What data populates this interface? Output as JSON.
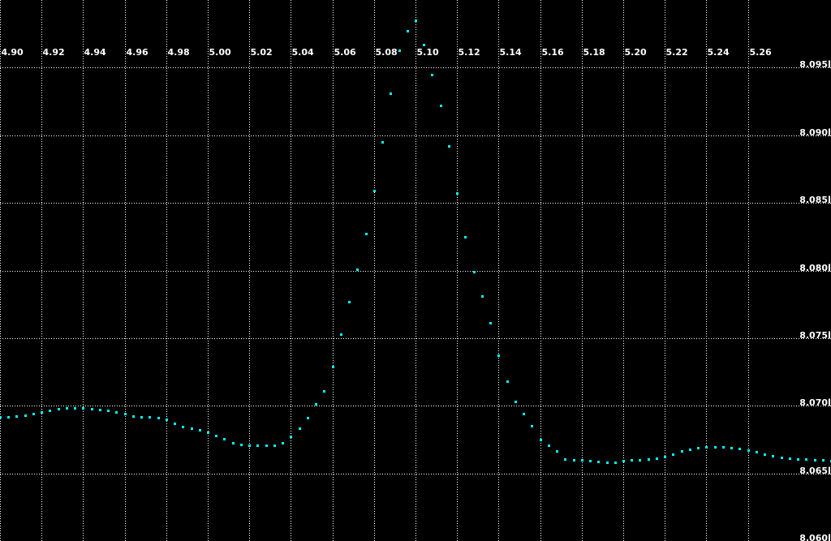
{
  "chart_data": {
    "type": "scatter",
    "title": "",
    "xlabel": "",
    "ylabel": "",
    "xlim": [
      4.9,
      5.3
    ],
    "ylim": [
      8.06,
      8.1
    ],
    "grid": true,
    "x_ticks": [
      "4.90",
      "4.92",
      "4.94",
      "4.96",
      "4.98",
      "5.00",
      "5.02",
      "5.04",
      "5.06",
      "5.08",
      "5.10",
      "5.12",
      "5.14",
      "5.16",
      "5.18",
      "5.20",
      "5.22",
      "5.24",
      "5.26"
    ],
    "y_ticks": [
      "8.060",
      "8.065",
      "8.070",
      "8.075",
      "8.080",
      "8.085",
      "8.090",
      "8.095"
    ],
    "colors": {
      "background": "#000000",
      "points": "#00ffff",
      "grid": "#ffffff",
      "text": "#ffffff"
    },
    "series": [
      {
        "x": [
          4.9,
          4.904,
          4.908,
          4.912,
          4.916,
          4.92,
          4.924,
          4.928,
          4.932,
          4.936,
          4.94,
          4.944,
          4.948,
          4.952,
          4.956,
          4.96,
          4.964,
          4.968,
          4.972,
          4.976,
          4.98,
          4.984,
          4.988,
          4.992,
          4.996,
          5.0,
          5.004,
          5.008,
          5.012,
          5.016,
          5.02,
          5.024,
          5.028,
          5.032,
          5.036,
          5.04,
          5.044,
          5.048,
          5.052,
          5.056,
          5.06,
          5.064,
          5.068,
          5.072,
          5.076,
          5.08,
          5.084,
          5.088,
          5.092,
          5.096,
          5.1,
          5.104,
          5.108,
          5.112,
          5.116,
          5.12,
          5.124,
          5.128,
          5.132,
          5.136,
          5.14,
          5.144,
          5.148,
          5.152,
          5.156,
          5.16,
          5.164,
          5.168,
          5.172,
          5.176,
          5.18,
          5.184,
          5.188,
          5.192,
          5.196,
          5.2,
          5.204,
          5.208,
          5.212,
          5.216,
          5.22,
          5.224,
          5.228,
          5.232,
          5.236,
          5.24,
          5.244,
          5.248,
          5.252,
          5.256,
          5.26,
          5.264,
          5.268,
          5.272,
          5.276,
          5.28,
          5.284,
          5.288,
          5.292,
          5.296,
          5.3
        ],
        "y": [
          8.06916,
          8.06916,
          8.06922,
          8.06928,
          8.0694,
          8.06952,
          8.06964,
          8.06976,
          8.06982,
          8.06982,
          8.06982,
          8.06976,
          8.0697,
          8.06964,
          8.06952,
          8.0694,
          8.06922,
          8.06916,
          8.06916,
          8.0691,
          8.06898,
          8.06868,
          8.06844,
          8.06832,
          8.0682,
          8.06802,
          8.06778,
          8.06754,
          8.06724,
          8.06712,
          8.06706,
          8.06706,
          8.06706,
          8.06706,
          8.06724,
          8.06772,
          8.06832,
          8.0691,
          8.07012,
          8.07108,
          8.07288,
          8.07528,
          8.07768,
          8.08008,
          8.08272,
          8.0859,
          8.0895,
          8.0931,
          8.09628,
          8.09772,
          8.0985,
          8.0967,
          8.09448,
          8.0922,
          8.0892,
          8.08572,
          8.08248,
          8.0799,
          8.0781,
          8.07612,
          8.07372,
          8.0718,
          8.0703,
          8.0694,
          8.0685,
          8.06748,
          8.06706,
          8.06664,
          8.06604,
          8.06598,
          8.06598,
          8.06592,
          8.06586,
          8.0658,
          8.0658,
          8.06592,
          8.06598,
          8.06598,
          8.06604,
          8.0661,
          8.06622,
          8.0664,
          8.06664,
          8.06676,
          8.06688,
          8.06694,
          8.06694,
          8.06694,
          8.06688,
          8.06682,
          8.0667,
          8.06658,
          8.0664,
          8.06628,
          8.06616,
          8.0661,
          8.06604,
          8.06604,
          8.06598,
          8.06598,
          8.06592
        ]
      }
    ]
  }
}
